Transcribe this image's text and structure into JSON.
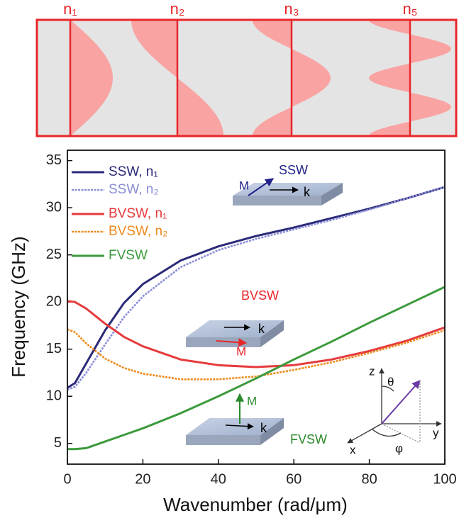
{
  "mode_profiles": [
    "n₁",
    "n₂",
    "n₃",
    "n₅"
  ],
  "chart_data": {
    "type": "line",
    "x_label": "Wavenumber (rad/μm)",
    "y_label": "Frequency (GHz)",
    "x": [
      0,
      2,
      5,
      10,
      15,
      20,
      30,
      40,
      50,
      60,
      70,
      80,
      90,
      100
    ],
    "series": [
      {
        "name": "SSW, n₁",
        "color": "#2b2a78",
        "line_style": "solid",
        "values": [
          10.9,
          11.4,
          13.5,
          17.0,
          19.9,
          21.9,
          24.4,
          25.9,
          27.0,
          27.9,
          28.9,
          29.9,
          31.0,
          32.2
        ]
      },
      {
        "name": "SSW, n₂",
        "color": "#8a8ed6",
        "line_style": "dotted",
        "values": [
          10.7,
          11.0,
          12.5,
          15.5,
          18.4,
          20.6,
          23.7,
          25.5,
          26.7,
          27.7,
          28.7,
          29.8,
          31.0,
          32.2
        ]
      },
      {
        "name": "BVSW, n₁",
        "color": "#e63a3c",
        "line_style": "solid",
        "values": [
          20.1,
          20.0,
          19.3,
          17.7,
          16.3,
          15.3,
          13.9,
          13.3,
          13.1,
          13.3,
          13.9,
          14.8,
          15.9,
          17.3
        ]
      },
      {
        "name": "BVSW, n₂",
        "color": "#ef8a1c",
        "line_style": "dotted",
        "values": [
          17.1,
          16.8,
          15.6,
          14.0,
          13.0,
          12.4,
          11.8,
          11.8,
          12.1,
          12.8,
          13.6,
          14.6,
          15.7,
          17.0
        ]
      },
      {
        "name": "FVSW",
        "color": "#3c9a3c",
        "line_style": "solid",
        "values": [
          4.4,
          4.4,
          4.5,
          5.2,
          5.9,
          6.6,
          8.2,
          10.0,
          11.9,
          13.9,
          15.8,
          17.8,
          19.7,
          21.6
        ]
      }
    ],
    "xlim": [
      0,
      100
    ],
    "xticks": [
      0,
      20,
      40,
      60,
      80,
      100
    ],
    "ylim": [
      2.8,
      36.1
    ],
    "yticks": [
      5,
      10,
      15,
      20,
      25,
      30,
      35
    ],
    "legend": "upper left",
    "annotations": [
      "SSW",
      "M",
      "k",
      "BVSW",
      "k",
      "M",
      "FVSW",
      "M",
      "k",
      "z",
      "θ",
      "y",
      "x",
      "φ"
    ]
  }
}
